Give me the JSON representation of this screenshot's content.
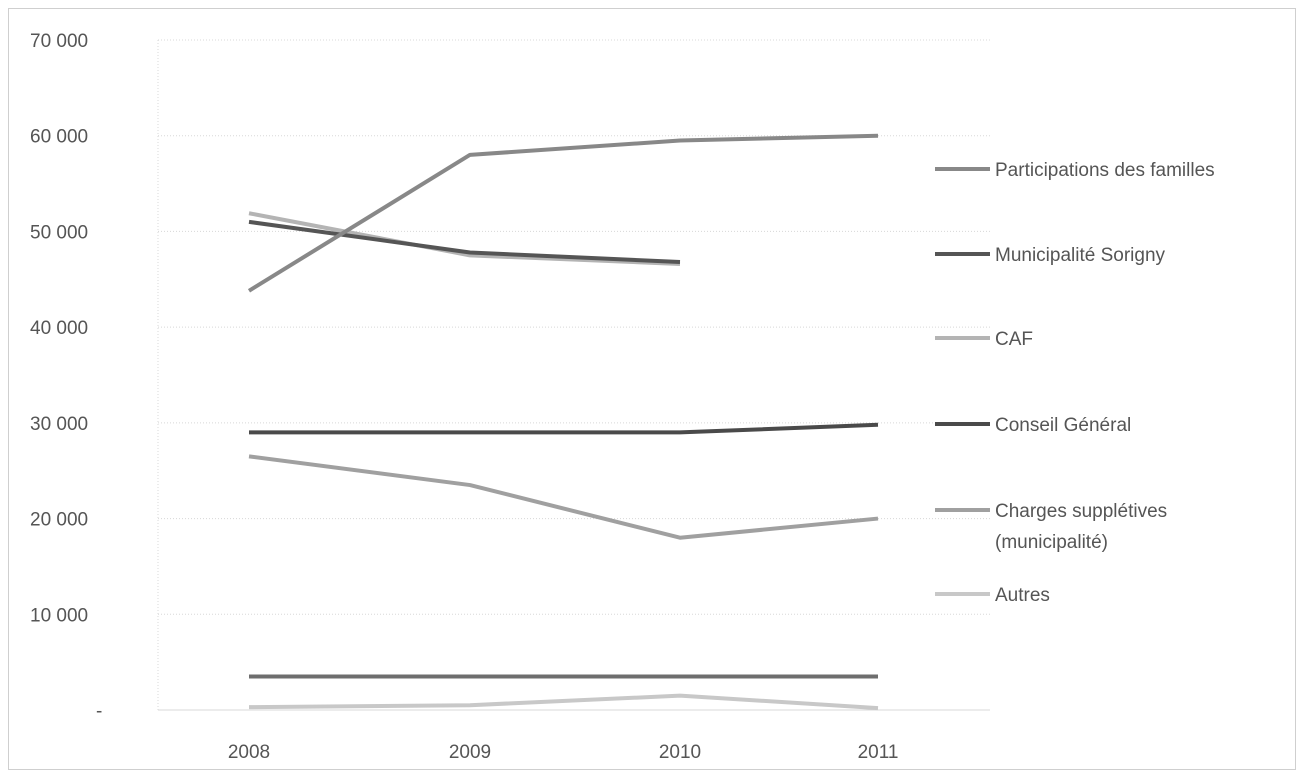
{
  "chart_data": {
    "type": "line",
    "title": "",
    "xlabel": "",
    "ylabel": "",
    "x": [
      "2008",
      "2009",
      "2010",
      "2011"
    ],
    "ylim": [
      0,
      70000
    ],
    "yticks": [
      {
        "value": 0,
        "label": "-"
      },
      {
        "value": 10000,
        "label": "10 000"
      },
      {
        "value": 20000,
        "label": "20 000"
      },
      {
        "value": 30000,
        "label": "30 000"
      },
      {
        "value": 40000,
        "label": "40 000"
      },
      {
        "value": 50000,
        "label": "50 000"
      },
      {
        "value": 60000,
        "label": "60 000"
      },
      {
        "value": 70000,
        "label": "70 000"
      }
    ],
    "grid": true,
    "legend_position": "right",
    "series": [
      {
        "name": "Participations des familles",
        "color": "#888888",
        "values": [
          43800,
          58000,
          59500,
          60000
        ]
      },
      {
        "name": "Municipalité Sorigny",
        "color": "#555555",
        "values": [
          51000,
          47800,
          46800,
          null
        ]
      },
      {
        "name": "CAF",
        "color": "#b4b4b4",
        "values": [
          51900,
          47500,
          46600,
          null
        ]
      },
      {
        "name": "Conseil Général",
        "color": "#4a4a4a",
        "values": [
          29000,
          29000,
          29000,
          29800
        ]
      },
      {
        "name": "Charges supplétives (municipalité)",
        "color": "#a0a0a0",
        "values": [
          26500,
          23500,
          18000,
          20000
        ]
      },
      {
        "name": "Autres",
        "color": "#c8c8c8",
        "values": [
          300,
          500,
          1500,
          200
        ]
      }
    ],
    "extra_series": [
      {
        "color": "#6e6e6e",
        "values": [
          3500,
          3500,
          3500,
          3500
        ]
      }
    ]
  }
}
